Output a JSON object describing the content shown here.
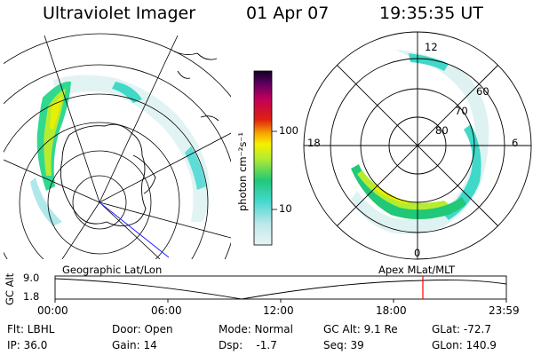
{
  "header": {
    "title": "Ultraviolet Imager",
    "date": "01 Apr 07",
    "time": "19:35:35 UT"
  },
  "colorbar": {
    "unit_label": "photon cm⁻²s⁻¹",
    "ticks": [
      "100",
      "10"
    ]
  },
  "polar": {
    "clock_labels": [
      "12",
      "18",
      "6",
      "0"
    ],
    "lat_labels": [
      "60",
      "70",
      "80"
    ]
  },
  "timeline": {
    "left_label": "Geographic Lat/Lon",
    "right_label": "Apex MLat/MLT",
    "y_axis_label": "GC Alt",
    "y_ticks": [
      "9.0",
      "1.8"
    ],
    "x_ticks": [
      "00:00",
      "06:00",
      "12:00",
      "18:00",
      "23:59"
    ],
    "marker_color": "#ff0000"
  },
  "footer": {
    "flt": "Flt: LBHL",
    "ip": "IP: 36.0",
    "door": "Door: Open",
    "gain": "Gain: 14",
    "mode": "Mode: Normal",
    "dsp": "Dsp:    -1.7",
    "gcalt": "GC Alt: 9.1 Re",
    "seq": "Seq: 39",
    "glat": "GLat: -72.7",
    "glon": "GLon: 140.9"
  }
}
